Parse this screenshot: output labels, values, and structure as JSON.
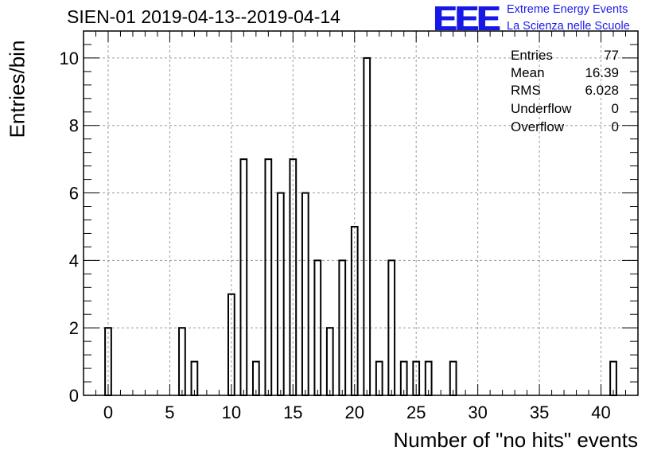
{
  "header": {
    "title": "SIEN-01 2019-04-13--2019-04-14"
  },
  "logo": {
    "mark": "EEE",
    "line1": "Extreme Energy Events",
    "line2": "La Scienza nelle Scuole",
    "color": "#1818e6"
  },
  "stats": [
    {
      "key": "Entries",
      "value": "77"
    },
    {
      "key": "Mean",
      "value": "16.39"
    },
    {
      "key": "RMS",
      "value": "6.028"
    },
    {
      "key": "Underflow",
      "value": "0"
    },
    {
      "key": "Overflow",
      "value": "0"
    }
  ],
  "chart_data": {
    "type": "bar",
    "histogram": true,
    "title": "SIEN-01 2019-04-13--2019-04-14",
    "xlabel": "Number of \"no hits\" events",
    "ylabel": "Entries/bin",
    "xlim": [
      -2,
      43
    ],
    "ylim": [
      0,
      10.8
    ],
    "xticks": [
      0,
      5,
      10,
      15,
      20,
      25,
      30,
      35,
      40
    ],
    "yticks": [
      0,
      2,
      4,
      6,
      8,
      10
    ],
    "grid": true,
    "bar_width": 0.5,
    "points": [
      {
        "x": 0,
        "y": 2
      },
      {
        "x": 6,
        "y": 2
      },
      {
        "x": 7,
        "y": 1
      },
      {
        "x": 10,
        "y": 3
      },
      {
        "x": 11,
        "y": 7
      },
      {
        "x": 12,
        "y": 1
      },
      {
        "x": 13,
        "y": 7
      },
      {
        "x": 14,
        "y": 6
      },
      {
        "x": 15,
        "y": 7
      },
      {
        "x": 16,
        "y": 6
      },
      {
        "x": 17,
        "y": 4
      },
      {
        "x": 18,
        "y": 2
      },
      {
        "x": 19,
        "y": 4
      },
      {
        "x": 20,
        "y": 5
      },
      {
        "x": 21,
        "y": 10
      },
      {
        "x": 22,
        "y": 1
      },
      {
        "x": 23,
        "y": 4
      },
      {
        "x": 24,
        "y": 1
      },
      {
        "x": 25,
        "y": 1
      },
      {
        "x": 26,
        "y": 1
      },
      {
        "x": 28,
        "y": 1
      },
      {
        "x": 41,
        "y": 1
      }
    ]
  }
}
